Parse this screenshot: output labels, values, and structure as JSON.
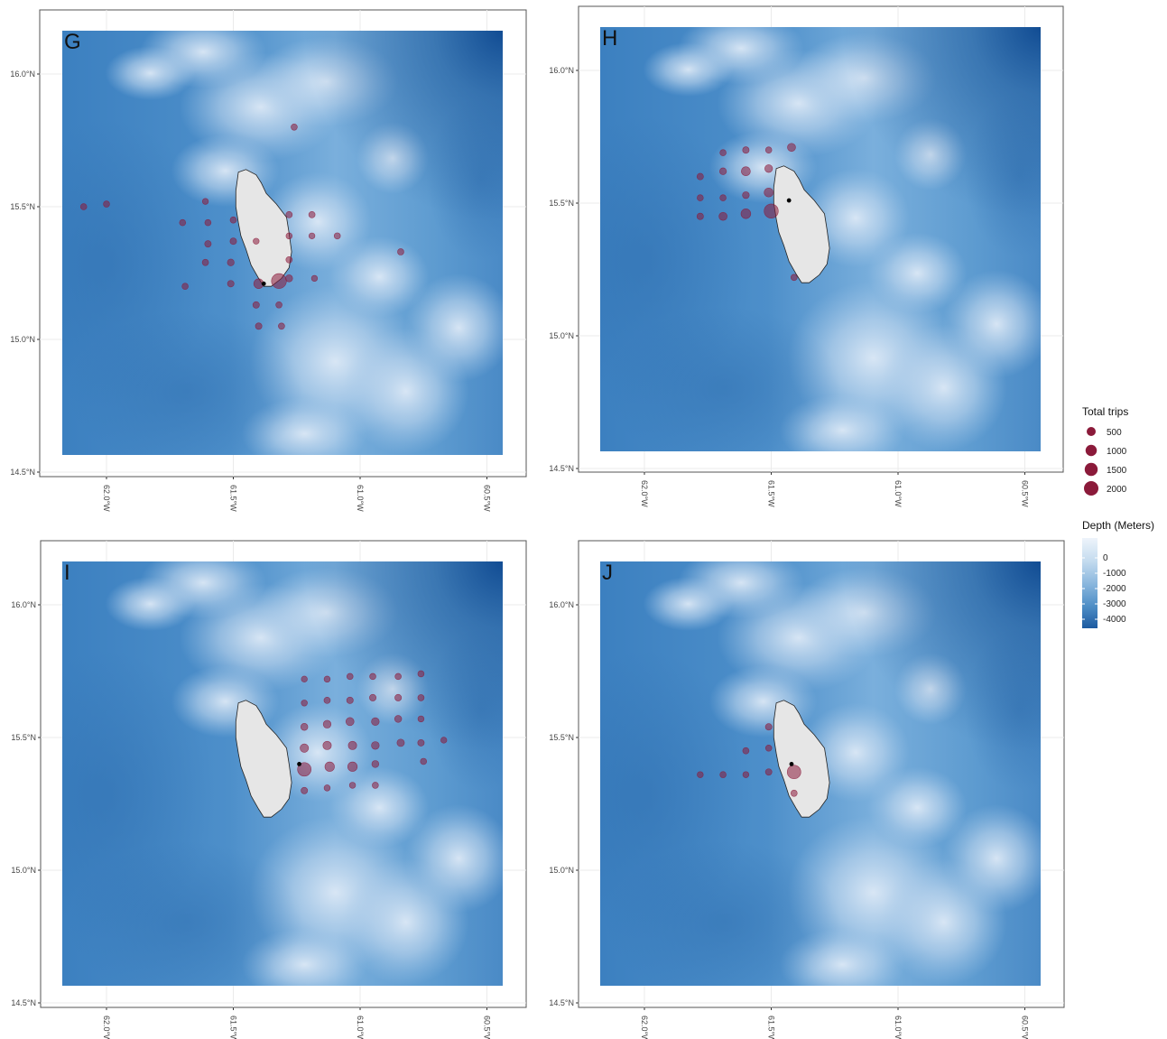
{
  "map_data": {
    "x_ticks": [
      {
        "value": -62.0,
        "label": "62.0°W"
      },
      {
        "value": -61.5,
        "label": "61.5°W"
      },
      {
        "value": -61.0,
        "label": "61.0°W"
      },
      {
        "value": -60.5,
        "label": "60.5°W"
      }
    ],
    "y_ticks": [
      {
        "value": 16.0,
        "label": "16.0°N"
      },
      {
        "value": 15.5,
        "label": "15.5°N"
      },
      {
        "value": 15.0,
        "label": "15.0°N"
      },
      {
        "value": 14.5,
        "label": "14.5°N"
      }
    ],
    "colors": {
      "point": "#8b1a3a",
      "landing": "#000000",
      "land": "#e6e6e6"
    },
    "panels": [
      {
        "label": "G",
        "landing": [
          -61.38,
          15.21
        ],
        "points": [
          [
            -62.09,
            15.5,
            120
          ],
          [
            -62.0,
            15.51,
            120
          ],
          [
            -61.61,
            15.52,
            100
          ],
          [
            -61.7,
            15.44,
            120
          ],
          [
            -61.6,
            15.44,
            120
          ],
          [
            -61.5,
            15.45,
            130
          ],
          [
            -61.41,
            15.37,
            100
          ],
          [
            -61.28,
            15.47,
            130
          ],
          [
            -61.19,
            15.47,
            130
          ],
          [
            -61.28,
            15.39,
            110
          ],
          [
            -61.19,
            15.39,
            100
          ],
          [
            -61.09,
            15.39,
            120
          ],
          [
            -61.6,
            15.36,
            150
          ],
          [
            -61.5,
            15.37,
            150
          ],
          [
            -61.28,
            15.3,
            130
          ],
          [
            -60.84,
            15.33,
            130
          ],
          [
            -61.61,
            15.29,
            130
          ],
          [
            -61.51,
            15.29,
            180
          ],
          [
            -61.69,
            15.2,
            120
          ],
          [
            -61.51,
            15.21,
            150
          ],
          [
            -61.4,
            15.21,
            650
          ],
          [
            -61.32,
            15.22,
            2200
          ],
          [
            -61.28,
            15.23,
            200
          ],
          [
            -61.18,
            15.23,
            100
          ],
          [
            -61.41,
            15.13,
            150
          ],
          [
            -61.32,
            15.13,
            120
          ],
          [
            -61.4,
            15.05,
            150
          ],
          [
            -61.31,
            15.05,
            130
          ],
          [
            -61.26,
            15.8,
            120
          ]
        ]
      },
      {
        "label": "H",
        "landing": [
          -61.43,
          15.51
        ],
        "points": [
          [
            -61.69,
            15.69,
            120
          ],
          [
            -61.6,
            15.7,
            150
          ],
          [
            -61.51,
            15.7,
            120
          ],
          [
            -61.42,
            15.71,
            350
          ],
          [
            -61.78,
            15.6,
            150
          ],
          [
            -61.69,
            15.62,
            180
          ],
          [
            -61.6,
            15.62,
            500
          ],
          [
            -61.51,
            15.63,
            300
          ],
          [
            -61.78,
            15.52,
            120
          ],
          [
            -61.69,
            15.52,
            120
          ],
          [
            -61.6,
            15.53,
            180
          ],
          [
            -61.51,
            15.54,
            500
          ],
          [
            -61.78,
            15.45,
            150
          ],
          [
            -61.69,
            15.45,
            350
          ],
          [
            -61.6,
            15.46,
            650
          ],
          [
            -61.5,
            15.47,
            1900
          ],
          [
            -61.41,
            15.22,
            120
          ]
        ]
      },
      {
        "label": "I",
        "landing": [
          -61.24,
          15.4
        ],
        "points": [
          [
            -61.22,
            15.72,
            100
          ],
          [
            -61.13,
            15.72,
            110
          ],
          [
            -61.04,
            15.73,
            120
          ],
          [
            -60.95,
            15.73,
            120
          ],
          [
            -60.85,
            15.73,
            120
          ],
          [
            -60.76,
            15.74,
            120
          ],
          [
            -61.22,
            15.63,
            110
          ],
          [
            -61.13,
            15.64,
            130
          ],
          [
            -61.04,
            15.64,
            150
          ],
          [
            -60.95,
            15.65,
            160
          ],
          [
            -60.85,
            15.65,
            160
          ],
          [
            -60.76,
            15.65,
            130
          ],
          [
            -61.22,
            15.54,
            200
          ],
          [
            -61.13,
            15.55,
            300
          ],
          [
            -61.04,
            15.56,
            350
          ],
          [
            -60.94,
            15.56,
            300
          ],
          [
            -60.85,
            15.57,
            200
          ],
          [
            -60.76,
            15.57,
            110
          ],
          [
            -61.22,
            15.46,
            400
          ],
          [
            -61.13,
            15.47,
            400
          ],
          [
            -61.03,
            15.47,
            400
          ],
          [
            -60.94,
            15.47,
            300
          ],
          [
            -60.84,
            15.48,
            250
          ],
          [
            -60.76,
            15.48,
            150
          ],
          [
            -60.67,
            15.49,
            100
          ],
          [
            -61.22,
            15.38,
            1700
          ],
          [
            -61.12,
            15.39,
            600
          ],
          [
            -61.03,
            15.39,
            600
          ],
          [
            -60.94,
            15.4,
            200
          ],
          [
            -60.75,
            15.41,
            120
          ],
          [
            -61.22,
            15.3,
            150
          ],
          [
            -61.13,
            15.31,
            110
          ],
          [
            -61.03,
            15.32,
            110
          ],
          [
            -60.94,
            15.32,
            120
          ]
        ]
      },
      {
        "label": "J",
        "landing": [
          -61.42,
          15.4
        ],
        "points": [
          [
            -61.51,
            15.54,
            150
          ],
          [
            -61.51,
            15.46,
            120
          ],
          [
            -61.6,
            15.45,
            130
          ],
          [
            -61.6,
            15.36,
            110
          ],
          [
            -61.69,
            15.36,
            120
          ],
          [
            -61.78,
            15.36,
            110
          ],
          [
            -61.51,
            15.37,
            140
          ],
          [
            -61.41,
            15.37,
            1700
          ],
          [
            -61.41,
            15.29,
            130
          ]
        ]
      }
    ]
  },
  "legend": {
    "size_title": "Total trips",
    "size_items": [
      {
        "label": "500",
        "value": 500
      },
      {
        "label": "1000",
        "value": 1000
      },
      {
        "label": "1500",
        "value": 1500
      },
      {
        "label": "2000",
        "value": 2000
      }
    ],
    "depth_title": "Depth (Meters)",
    "depth_labels": [
      "0",
      "-1000",
      "-2000",
      "-3000",
      "-4000"
    ],
    "depth_colors": [
      "#eef4fb",
      "#c5dcef",
      "#8cb8de",
      "#4f8fc7",
      "#1c5aa0"
    ]
  }
}
